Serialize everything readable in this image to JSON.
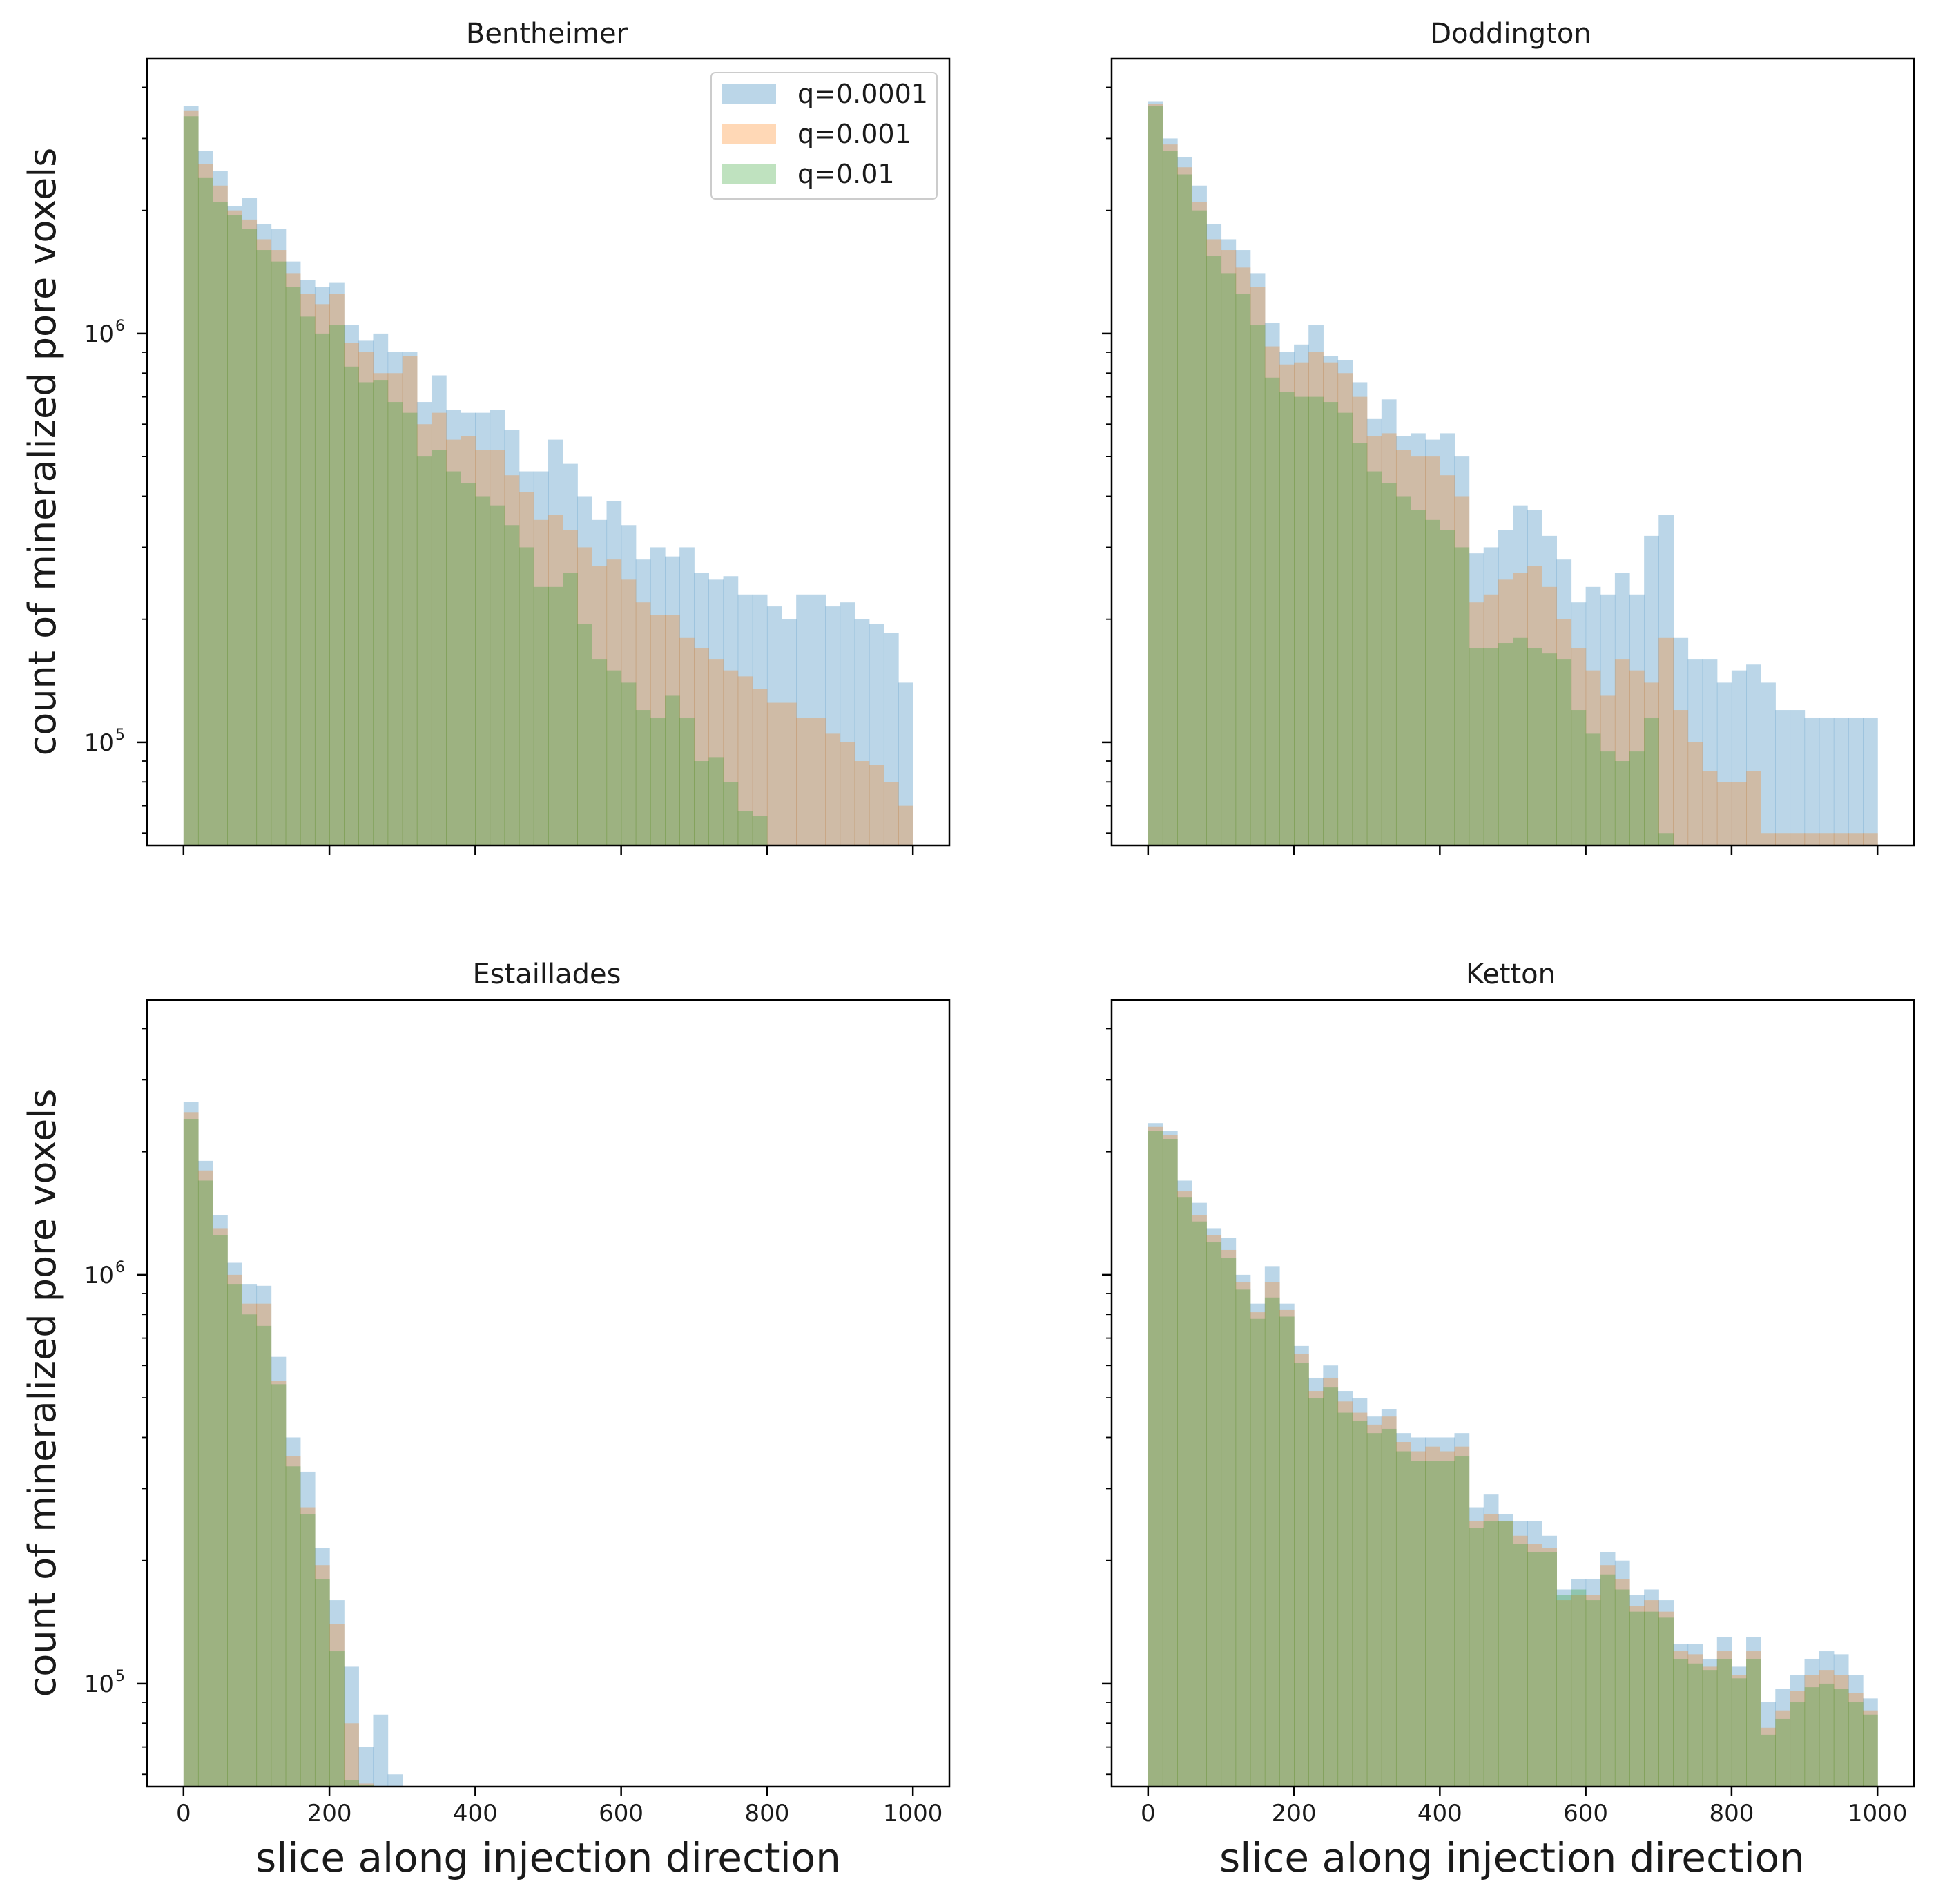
{
  "colors": {
    "q1": "#1f77b4",
    "q2": "#ff7f0e",
    "q3": "#2ca02c",
    "bar_alpha": 0.3,
    "axis": "#000000"
  },
  "shared": {
    "xlabel": "slice along injection direction",
    "ylabel": "count of mineralized pore voxels",
    "x_ticks": [
      0,
      200,
      400,
      600,
      800,
      1000
    ],
    "x_tick_labels": [
      "0",
      "200",
      "400",
      "600",
      "800",
      "1000"
    ],
    "y_major_ticks": [
      100000,
      1000000
    ],
    "y_major_labels": [
      "10",
      "10"
    ],
    "y_major_exps": [
      "5",
      "6"
    ],
    "xlim": [
      -50,
      1050
    ],
    "ylim": [
      56000,
      4700000
    ],
    "bin_width": 20
  },
  "legend": {
    "entries": [
      {
        "label": "q=0.0001",
        "color": "#1f77b4"
      },
      {
        "label": "q=0.001",
        "color": "#ff7f0e"
      },
      {
        "label": "q=0.01",
        "color": "#2ca02c"
      }
    ]
  },
  "chart_data": [
    {
      "type": "histogram",
      "title": "Bentheimer",
      "xlabel": "",
      "ylabel": "count of mineralized pore voxels",
      "yscale": "log",
      "series": [
        {
          "name": "q=0.0001",
          "values": [
            3600000,
            2800000,
            2500000,
            2050000,
            2150000,
            1850000,
            1800000,
            1500000,
            1350000,
            1300000,
            1330000,
            1050000,
            960000,
            1000000,
            900000,
            900000,
            680000,
            790000,
            650000,
            640000,
            640000,
            650000,
            580000,
            460000,
            460000,
            550000,
            480000,
            400000,
            350000,
            390000,
            340000,
            280000,
            300000,
            285000,
            300000,
            260000,
            250000,
            255000,
            230000,
            230000,
            215000,
            200000,
            230000,
            230000,
            215000,
            220000,
            200000,
            195000,
            185000,
            140000
          ]
        },
        {
          "name": "q=0.001",
          "values": [
            3500000,
            2600000,
            2300000,
            2000000,
            1900000,
            1700000,
            1600000,
            1400000,
            1250000,
            1180000,
            1250000,
            950000,
            900000,
            800000,
            800000,
            880000,
            600000,
            640000,
            550000,
            560000,
            520000,
            520000,
            450000,
            410000,
            350000,
            360000,
            330000,
            300000,
            270000,
            280000,
            250000,
            220000,
            205000,
            205000,
            180000,
            170000,
            160000,
            150000,
            145000,
            135000,
            125000,
            125000,
            115000,
            115000,
            105000,
            100000,
            90000,
            88000,
            80000,
            70000
          ]
        },
        {
          "name": "q=0.01",
          "values": [
            3400000,
            2400000,
            2100000,
            1950000,
            1800000,
            1600000,
            1500000,
            1300000,
            1100000,
            1000000,
            1050000,
            830000,
            760000,
            770000,
            680000,
            640000,
            500000,
            520000,
            460000,
            430000,
            400000,
            380000,
            340000,
            300000,
            240000,
            240000,
            260000,
            195000,
            160000,
            150000,
            140000,
            120000,
            115000,
            130000,
            115000,
            90000,
            92000,
            80000,
            68000,
            66000,
            50000,
            50000,
            50000,
            50000,
            50000,
            50000,
            50000,
            50000,
            50000,
            50000
          ]
        }
      ]
    },
    {
      "type": "histogram",
      "title": "Doddington",
      "xlabel": "",
      "ylabel": "",
      "yscale": "log",
      "series": [
        {
          "name": "q=0.0001",
          "values": [
            3700000,
            3000000,
            2700000,
            2300000,
            1850000,
            1700000,
            1600000,
            1400000,
            1060000,
            900000,
            940000,
            1050000,
            880000,
            860000,
            760000,
            620000,
            690000,
            560000,
            570000,
            550000,
            570000,
            500000,
            290000,
            300000,
            330000,
            380000,
            370000,
            320000,
            280000,
            220000,
            240000,
            230000,
            260000,
            230000,
            320000,
            360000,
            180000,
            160000,
            160000,
            140000,
            150000,
            155000,
            140000,
            120000,
            120000,
            115000,
            115000,
            115000,
            115000,
            115000
          ]
        },
        {
          "name": "q=0.001",
          "values": [
            3650000,
            2900000,
            2550000,
            2100000,
            1700000,
            1600000,
            1450000,
            1300000,
            930000,
            840000,
            850000,
            900000,
            850000,
            800000,
            700000,
            560000,
            570000,
            520000,
            500000,
            500000,
            450000,
            400000,
            220000,
            230000,
            250000,
            260000,
            270000,
            240000,
            200000,
            170000,
            150000,
            130000,
            160000,
            150000,
            140000,
            180000,
            120000,
            100000,
            85000,
            80000,
            80000,
            85000,
            60000,
            60000,
            60000,
            60000,
            60000,
            60000,
            60000,
            60000
          ]
        },
        {
          "name": "q=0.01",
          "values": [
            3600000,
            2800000,
            2450000,
            2000000,
            1550000,
            1400000,
            1250000,
            1050000,
            780000,
            720000,
            700000,
            700000,
            680000,
            640000,
            540000,
            460000,
            430000,
            400000,
            370000,
            350000,
            330000,
            300000,
            170000,
            170000,
            175000,
            180000,
            170000,
            165000,
            160000,
            120000,
            105000,
            95000,
            90000,
            95000,
            115000,
            60000,
            50000,
            50000,
            50000,
            50000,
            50000,
            50000,
            50000,
            50000,
            50000,
            50000,
            50000,
            50000,
            50000,
            50000
          ]
        }
      ]
    },
    {
      "type": "histogram",
      "title": "Estaillades",
      "xlabel": "slice along injection direction",
      "ylabel": "count of mineralized pore voxels",
      "yscale": "log",
      "series": [
        {
          "name": "q=0.0001",
          "values": [
            2650000,
            1900000,
            1400000,
            1070000,
            950000,
            940000,
            630000,
            400000,
            330000,
            215000,
            160000,
            110000,
            70000,
            84000,
            60000,
            50000,
            50000,
            50000,
            50000,
            50000,
            50000,
            50000,
            50000,
            50000,
            50000,
            50000,
            50000,
            50000,
            50000,
            50000,
            50000,
            50000,
            50000,
            50000,
            50000,
            50000,
            50000,
            50000,
            50000,
            50000,
            50000,
            50000,
            50000,
            50000,
            50000,
            50000,
            50000,
            50000,
            50000,
            50000
          ]
        },
        {
          "name": "q=0.001",
          "values": [
            2500000,
            1800000,
            1300000,
            1000000,
            850000,
            850000,
            550000,
            360000,
            270000,
            195000,
            140000,
            80000,
            57000,
            56000,
            50000,
            50000,
            50000,
            50000,
            50000,
            50000,
            50000,
            50000,
            50000,
            50000,
            50000,
            50000,
            50000,
            50000,
            50000,
            50000,
            50000,
            50000,
            50000,
            50000,
            50000,
            50000,
            50000,
            50000,
            50000,
            50000,
            50000,
            50000,
            50000,
            50000,
            50000,
            50000,
            50000,
            50000,
            50000,
            50000
          ]
        },
        {
          "name": "q=0.01",
          "values": [
            2400000,
            1700000,
            1250000,
            950000,
            800000,
            750000,
            540000,
            340000,
            260000,
            180000,
            120000,
            58000,
            56500,
            50000,
            50000,
            50000,
            50000,
            50000,
            50000,
            50000,
            50000,
            50000,
            50000,
            50000,
            50000,
            50000,
            50000,
            50000,
            50000,
            50000,
            50000,
            50000,
            50000,
            50000,
            50000,
            50000,
            50000,
            50000,
            50000,
            50000,
            50000,
            50000,
            50000,
            50000,
            50000,
            50000,
            50000,
            50000,
            50000,
            50000
          ]
        }
      ]
    },
    {
      "type": "histogram",
      "title": "Ketton",
      "xlabel": "slice along injection direction",
      "ylabel": "",
      "yscale": "log",
      "series": [
        {
          "name": "q=0.0001",
          "values": [
            2350000,
            2250000,
            1700000,
            1500000,
            1300000,
            1230000,
            1000000,
            850000,
            1050000,
            850000,
            670000,
            560000,
            600000,
            520000,
            500000,
            450000,
            470000,
            410000,
            400000,
            400000,
            400000,
            410000,
            270000,
            290000,
            260000,
            250000,
            250000,
            230000,
            170000,
            180000,
            180000,
            210000,
            200000,
            165000,
            170000,
            160000,
            125000,
            125000,
            115000,
            130000,
            110000,
            130000,
            90000,
            97000,
            105000,
            115000,
            120000,
            118000,
            105000,
            92000
          ]
        },
        {
          "name": "q=0.001",
          "values": [
            2300000,
            2200000,
            1600000,
            1400000,
            1250000,
            1150000,
            960000,
            810000,
            960000,
            820000,
            640000,
            520000,
            560000,
            490000,
            460000,
            430000,
            450000,
            390000,
            370000,
            380000,
            370000,
            380000,
            250000,
            260000,
            250000,
            230000,
            220000,
            215000,
            160000,
            165000,
            165000,
            195000,
            180000,
            155000,
            160000,
            150000,
            120000,
            118000,
            110000,
            120000,
            105000,
            120000,
            78000,
            86000,
            96000,
            105000,
            108000,
            105000,
            95000,
            86000
          ]
        },
        {
          "name": "q=0.01",
          "values": [
            2250000,
            2150000,
            1550000,
            1350000,
            1200000,
            1100000,
            920000,
            780000,
            880000,
            790000,
            610000,
            500000,
            530000,
            460000,
            440000,
            410000,
            420000,
            370000,
            350000,
            350000,
            350000,
            360000,
            240000,
            250000,
            250000,
            220000,
            210000,
            210000,
            165000,
            170000,
            160000,
            185000,
            170000,
            150000,
            150000,
            145000,
            115000,
            112000,
            108000,
            115000,
            103000,
            115000,
            75000,
            82000,
            90000,
            98000,
            100000,
            97000,
            90000,
            84000
          ]
        }
      ]
    }
  ]
}
